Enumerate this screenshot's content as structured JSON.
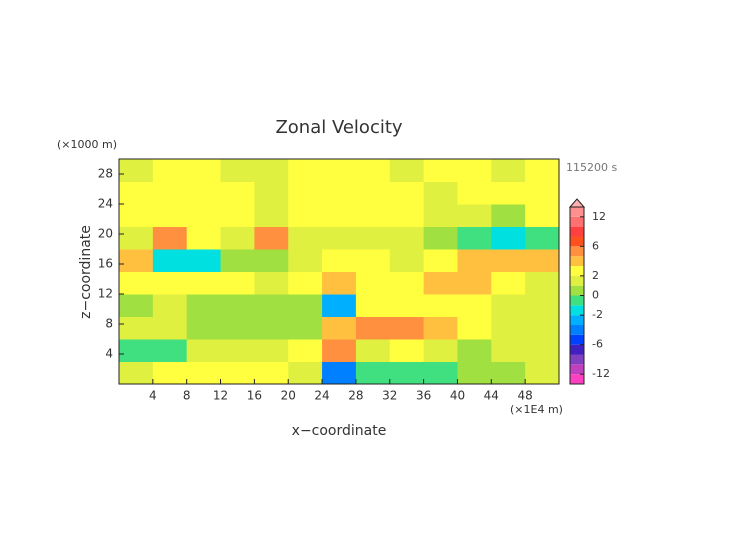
{
  "chart_data": {
    "type": "heatmap",
    "title": "Zonal Velocity",
    "xlabel": "x−coordinate",
    "ylabel": "z−coordinate",
    "x_unit": "(×1E4 m)",
    "y_unit": "(×1000 m)",
    "time_label": "115200 s",
    "xlim": [
      0,
      52
    ],
    "ylim": [
      0,
      30
    ],
    "xticks": [
      4,
      8,
      12,
      16,
      20,
      24,
      28,
      32,
      36,
      40,
      44,
      48
    ],
    "yticks": [
      4,
      8,
      12,
      16,
      20,
      24,
      28
    ],
    "x_edges": [
      0,
      4,
      8,
      12,
      16,
      20,
      24,
      28,
      32,
      36,
      40,
      44,
      48,
      52
    ],
    "z_edges": [
      0,
      3,
      6,
      9,
      12,
      15,
      18,
      21,
      24,
      27,
      30
    ],
    "values": [
      [
        1.5,
        2,
        2,
        2,
        2,
        1,
        -4,
        -1,
        -1,
        -1,
        0.5,
        0.5,
        1.5
      ],
      [
        -1,
        -0.5,
        1.5,
        1.5,
        1.5,
        2.5,
        4,
        1,
        2,
        1,
        0.5,
        1,
        1
      ],
      [
        1,
        1,
        0.5,
        0.5,
        0.5,
        0.5,
        3,
        4,
        4,
        3,
        2,
        1,
        1.5
      ],
      [
        0.5,
        1,
        0.5,
        0.5,
        0.5,
        0.5,
        -3,
        2.5,
        2,
        2,
        2.5,
        1.5,
        1
      ],
      [
        2.5,
        2.5,
        2,
        2.5,
        1,
        2,
        3,
        2.5,
        2.5,
        3,
        3.5,
        2.5,
        1.5
      ],
      [
        3.5,
        -1.5,
        -2,
        0.5,
        0.5,
        1,
        2,
        2.5,
        1,
        2.5,
        3,
        3,
        3
      ],
      [
        1,
        4,
        2.5,
        1.5,
        4,
        1.5,
        1.5,
        1,
        1.5,
        0.5,
        -1,
        -2,
        -1
      ],
      [
        2.5,
        2,
        2.5,
        2.5,
        1.5,
        2.5,
        2,
        2.5,
        2.5,
        1,
        1.5,
        0.5,
        2
      ],
      [
        2,
        2.5,
        2,
        2,
        1.5,
        2,
        2,
        2,
        2,
        1.5,
        2,
        2,
        2
      ],
      [
        1.5,
        2,
        2,
        1.5,
        1.5,
        2,
        2.5,
        2.5,
        1.5,
        2,
        2,
        1.5,
        2
      ]
    ],
    "colorbar": {
      "levels": [
        -14,
        -12,
        -10,
        -8,
        -6,
        -4,
        -3,
        -2,
        -1,
        0,
        1,
        2,
        3,
        4,
        6,
        8,
        10,
        12,
        14
      ],
      "colors": [
        "#ff40c0",
        "#c040c0",
        "#8040c0",
        "#4020c0",
        "#0040ff",
        "#0080ff",
        "#00b0ff",
        "#00e0e0",
        "#40e080",
        "#a0e040",
        "#e0f040",
        "#ffff40",
        "#ffc040",
        "#ff9040",
        "#ff5020",
        "#ff4040",
        "#ff7070",
        "#ff9090"
      ],
      "over_color": "#ffb0b0",
      "ticks": [
        -12,
        -6,
        -2,
        0,
        2,
        6,
        12
      ]
    }
  }
}
